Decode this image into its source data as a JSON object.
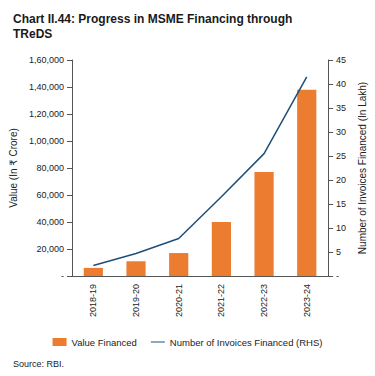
{
  "chart_data": {
    "type": "bar",
    "title": "Chart II.44: Progress in MSME Financing through TReDS",
    "source": "Source: RBI.",
    "y_label": "Value (In ₹ Crore)",
    "y2_label": "Number of Invoices Financed (In Lakh)",
    "categories": [
      "2018-19",
      "2019-20",
      "2020-21",
      "2021-22",
      "2022-23",
      "2023-24"
    ],
    "series": [
      {
        "name": "Value Financed",
        "type": "bar",
        "color": "#ec7c30",
        "values": [
          6000,
          11000,
          17000,
          40000,
          77000,
          138000
        ]
      },
      {
        "name": "Number of Invoices Financed (RHS)",
        "type": "line",
        "axis": "y2",
        "color": "#1f4e79",
        "marker": "none",
        "values": [
          2.2,
          4.7,
          7.8,
          16.5,
          25.5,
          41.5
        ]
      }
    ],
    "ylim": [
      0,
      160000
    ],
    "yticks": [
      {
        "value": 0,
        "label": "-"
      },
      {
        "value": 20000,
        "label": "20,000"
      },
      {
        "value": 40000,
        "label": "40,000"
      },
      {
        "value": 60000,
        "label": "60,000"
      },
      {
        "value": 80000,
        "label": "80,000"
      },
      {
        "value": 100000,
        "label": "1,00,000"
      },
      {
        "value": 120000,
        "label": "1,20,000"
      },
      {
        "value": 140000,
        "label": "1,40,000"
      },
      {
        "value": 160000,
        "label": "1,60,000"
      }
    ],
    "y2lim": [
      0,
      45
    ],
    "y2ticks": [
      {
        "value": 0,
        "label": "-"
      },
      5,
      10,
      15,
      20,
      25,
      30,
      35,
      40,
      45
    ],
    "grid": false,
    "legend": "bottom"
  }
}
